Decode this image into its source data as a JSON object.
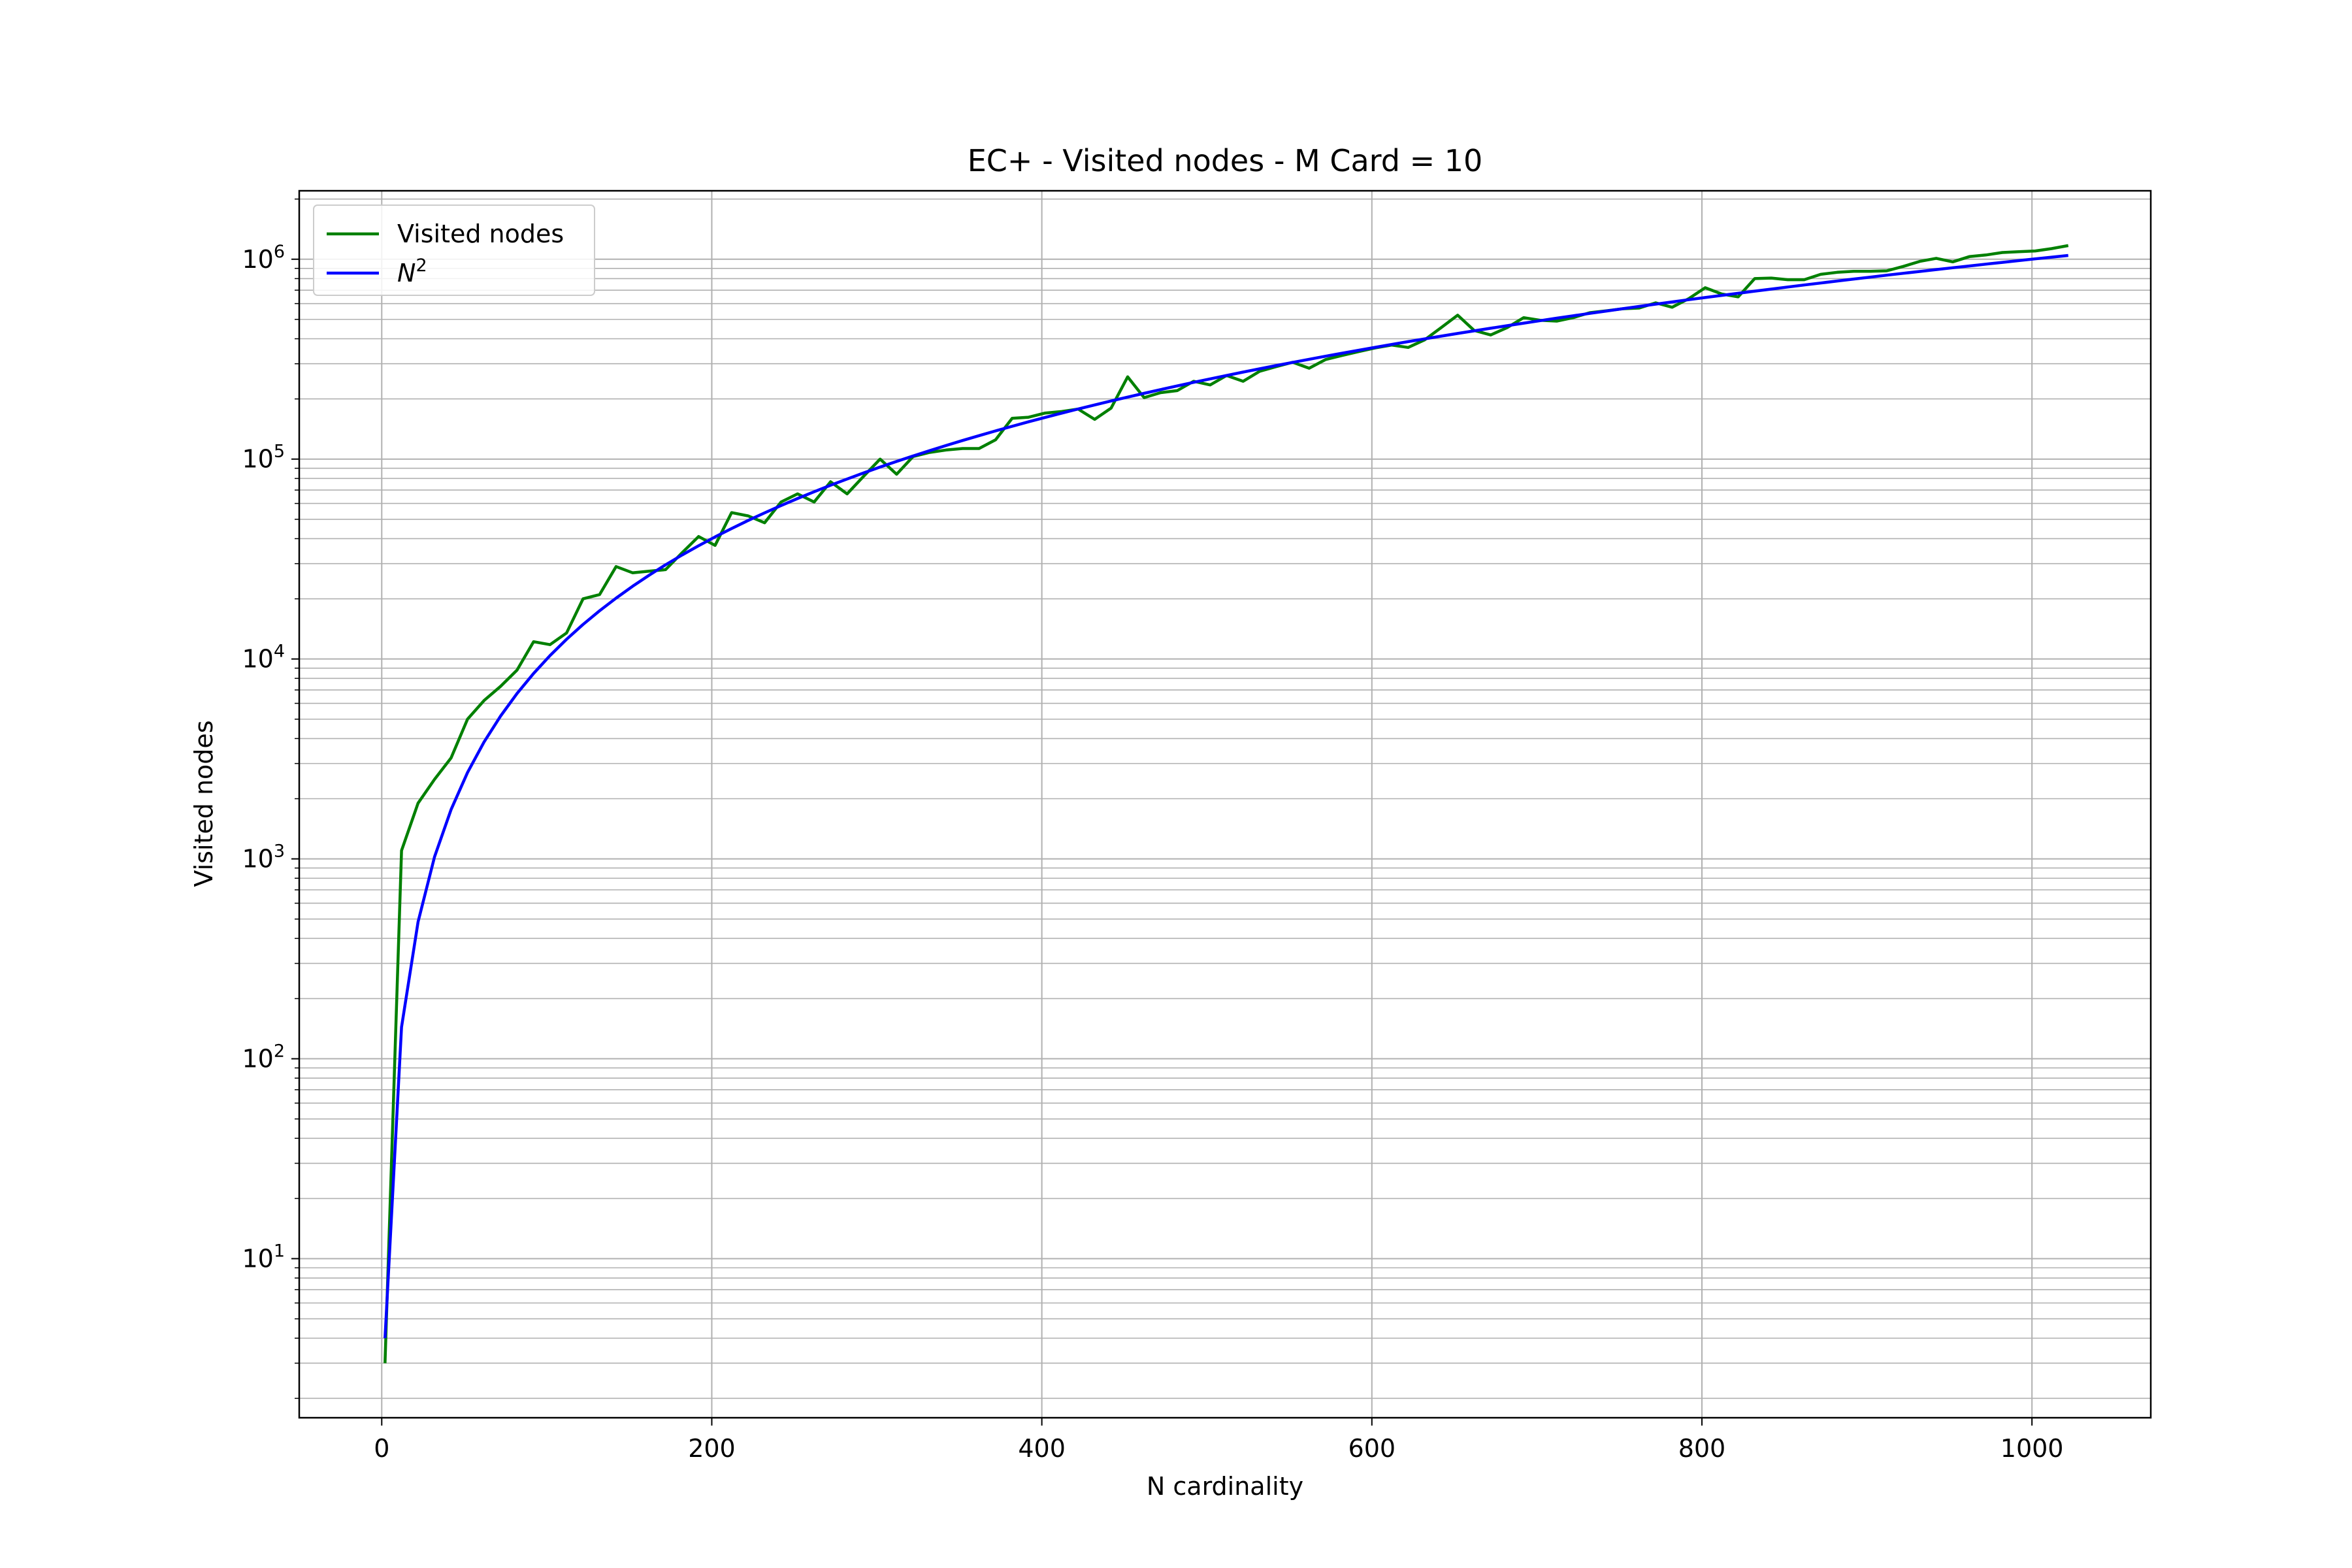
{
  "chart_data": {
    "type": "line",
    "title": "EC+ - Visited nodes - M Card = 10",
    "xlabel": "N cardinality",
    "ylabel": "Visited nodes",
    "xlim": [
      -50,
      1072
    ],
    "ylim": [
      1.6,
      2200000
    ],
    "yscale": "log",
    "grid": true,
    "grid_minor_y": true,
    "legend_position": "top-left",
    "x_ticks": [
      0,
      200,
      400,
      600,
      800,
      1000
    ],
    "x_tick_labels": [
      "0",
      "200",
      "400",
      "600",
      "800",
      "1000"
    ],
    "y_ticks": [
      10,
      100,
      1000,
      10000,
      100000,
      1000000
    ],
    "y_tick_labels": [
      {
        "base": "10",
        "exp": "1"
      },
      {
        "base": "10",
        "exp": "2"
      },
      {
        "base": "10",
        "exp": "3"
      },
      {
        "base": "10",
        "exp": "4"
      },
      {
        "base": "10",
        "exp": "5"
      },
      {
        "base": "10",
        "exp": "6"
      }
    ],
    "series": [
      {
        "name": "Visited nodes",
        "color": "#008000",
        "x": [
          2,
          12,
          22,
          32,
          42,
          52,
          62,
          72,
          82,
          92,
          102,
          112,
          122,
          132,
          142,
          152,
          162,
          172,
          182,
          192,
          202,
          212,
          222,
          232,
          242,
          252,
          262,
          272,
          282,
          292,
          302,
          312,
          322,
          332,
          342,
          352,
          362,
          372,
          382,
          392,
          402,
          412,
          422,
          432,
          442,
          452,
          462,
          472,
          482,
          492,
          502,
          512,
          522,
          532,
          542,
          552,
          562,
          572,
          582,
          592,
          602,
          612,
          622,
          632,
          642,
          652,
          662,
          672,
          682,
          692,
          702,
          712,
          722,
          732,
          742,
          752,
          762,
          772,
          782,
          792,
          802,
          812,
          822,
          832,
          842,
          852,
          862,
          872,
          882,
          892,
          902,
          912,
          922,
          932,
          942,
          952,
          962,
          972,
          982,
          992,
          1002,
          1012,
          1022
        ],
        "y": [
          3,
          1100,
          1900,
          2500,
          3200,
          5000,
          6200,
          7300,
          8800,
          12200,
          11800,
          13500,
          20000,
          21000,
          29000,
          27000,
          27500,
          28000,
          34000,
          41000,
          37000,
          54000,
          52000,
          48000,
          61000,
          67000,
          61000,
          77000,
          67000,
          82000,
          100000,
          84000,
          103000,
          108000,
          111000,
          113000,
          113000,
          125000,
          160000,
          162000,
          170000,
          173000,
          178000,
          158000,
          180000,
          258000,
          203000,
          215000,
          220000,
          245000,
          235000,
          262000,
          245000,
          275000,
          290000,
          305000,
          285000,
          315000,
          330000,
          345000,
          360000,
          372000,
          362000,
          395000,
          455000,
          525000,
          440000,
          418000,
          455000,
          510000,
          495000,
          490000,
          510000,
          540000,
          552000,
          565000,
          570000,
          605000,
          575000,
          635000,
          720000,
          670000,
          648000,
          800000,
          805000,
          790000,
          790000,
          840000,
          860000,
          870000,
          870000,
          875000,
          920000,
          975000,
          1010000,
          970000,
          1030000,
          1050000,
          1080000,
          1090000,
          1100000,
          1130000,
          1170000
        ]
      },
      {
        "name": "N^2",
        "name_base": "N",
        "name_exp": "2",
        "color": "#0000ff",
        "x": [
          2,
          12,
          22,
          32,
          42,
          52,
          62,
          72,
          82,
          92,
          102,
          112,
          122,
          132,
          142,
          152,
          162,
          172,
          182,
          192,
          202,
          212,
          222,
          232,
          242,
          252,
          262,
          272,
          282,
          292,
          302,
          312,
          322,
          332,
          342,
          352,
          362,
          372,
          382,
          392,
          402,
          412,
          422,
          432,
          442,
          452,
          462,
          472,
          482,
          492,
          502,
          512,
          522,
          532,
          542,
          552,
          562,
          572,
          582,
          592,
          602,
          612,
          622,
          632,
          642,
          652,
          662,
          672,
          682,
          692,
          702,
          712,
          722,
          732,
          742,
          752,
          762,
          772,
          782,
          792,
          802,
          812,
          822,
          832,
          842,
          852,
          862,
          872,
          882,
          892,
          902,
          912,
          922,
          932,
          942,
          952,
          962,
          972,
          982,
          992,
          1002,
          1012,
          1022
        ],
        "y": [
          4,
          144,
          484,
          1024,
          1764,
          2704,
          3844,
          5184,
          6724,
          8464,
          10404,
          12544,
          14884,
          17424,
          20164,
          23104,
          26244,
          29584,
          33124,
          36864,
          40804,
          44944,
          49284,
          53824,
          58564,
          63504,
          68644,
          73984,
          79524,
          85264,
          91204,
          97344,
          103684,
          110224,
          116964,
          123904,
          131044,
          138384,
          145924,
          153664,
          161604,
          169744,
          178084,
          186624,
          195364,
          204304,
          213444,
          222784,
          232324,
          242064,
          252004,
          262144,
          272484,
          283024,
          293764,
          304704,
          315844,
          327184,
          338724,
          350464,
          362404,
          374544,
          386884,
          399424,
          412164,
          425104,
          438244,
          451584,
          465124,
          478864,
          492804,
          506944,
          521284,
          535824,
          550564,
          565504,
          580644,
          595984,
          611524,
          627264,
          643204,
          659344,
          675684,
          692224,
          708964,
          725904,
          743044,
          760384,
          777924,
          795664,
          813604,
          831744,
          850084,
          868624,
          887364,
          906304,
          925444,
          944784,
          964324,
          984064,
          1004004,
          1024144,
          1044484
        ]
      }
    ]
  }
}
